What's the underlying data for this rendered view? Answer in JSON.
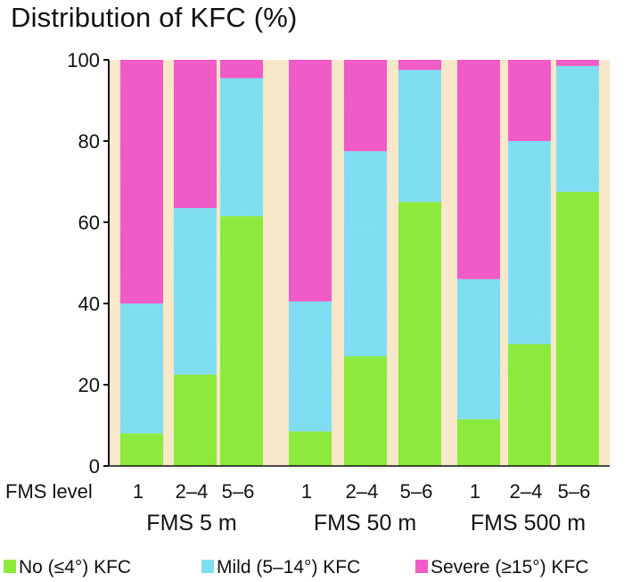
{
  "chart_data": {
    "type": "bar",
    "stacked": true,
    "title": "Distribution of KFC (%)",
    "x_axis_label": "FMS level",
    "categories": [
      "1",
      "2–4",
      "5–6",
      "1",
      "2–4",
      "5–6",
      "1",
      "2–4",
      "5–6"
    ],
    "groups": [
      {
        "label": "FMS 5 m",
        "categories": [
          "1",
          "2–4",
          "5–6"
        ]
      },
      {
        "label": "FMS 50 m",
        "categories": [
          "1",
          "2–4",
          "5–6"
        ]
      },
      {
        "label": "FMS 500 m",
        "categories": [
          "1",
          "2–4",
          "5–6"
        ]
      }
    ],
    "series": [
      {
        "name": "No (≤4°) KFC",
        "color": "#8CEB3C",
        "values": [
          8,
          22.5,
          61.5,
          8.5,
          27,
          65,
          11.5,
          30,
          67.5
        ]
      },
      {
        "name": "Mild (5–14°) KFC",
        "color": "#80DEF2",
        "values": [
          32,
          41,
          34,
          32,
          50.5,
          32.5,
          34.5,
          50,
          31
        ]
      },
      {
        "name": "Severe (≥15°) KFC",
        "color": "#F05BC8",
        "values": [
          60,
          36.5,
          4.5,
          59.5,
          22.5,
          2.5,
          54,
          20,
          1.5
        ]
      }
    ],
    "y_ticks": [
      "0",
      "20",
      "40",
      "60",
      "80",
      "100"
    ],
    "ylim": [
      0,
      100
    ],
    "legend_position": "bottom",
    "grid": false,
    "background_color": "#F8E7C8"
  }
}
